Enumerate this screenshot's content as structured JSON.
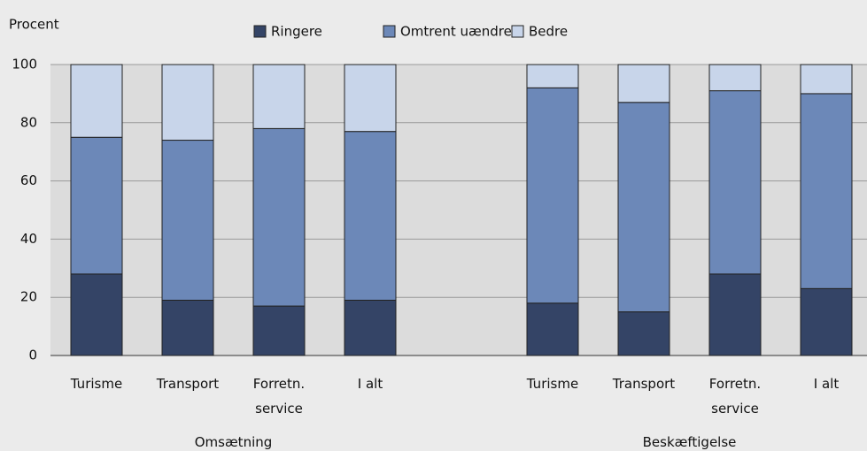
{
  "chart_data": {
    "type": "stacked_bar",
    "y_axis_label": "Procent",
    "categories": [
      "Turisme",
      "Transport",
      "Forretn. service",
      "I alt",
      null,
      "Turisme",
      "Transport",
      "Forretn. service",
      "I alt"
    ],
    "group_labels": [
      "Omsætning",
      "Beskæftigelse"
    ],
    "series": [
      {
        "name": "Ringere",
        "color": "#344466",
        "values": [
          28,
          19,
          17,
          19,
          null,
          18,
          15,
          28,
          23
        ]
      },
      {
        "name": "Omtrent uændret",
        "color": "#6c88b8",
        "values": [
          47,
          55,
          61,
          58,
          null,
          74,
          72,
          63,
          67
        ]
      },
      {
        "name": "Bedre",
        "color": "#c8d5ea",
        "values": [
          25,
          26,
          22,
          23,
          null,
          8,
          13,
          9,
          10
        ]
      }
    ],
    "ylim": [
      0,
      100
    ],
    "yticks": [
      0,
      20,
      40,
      60,
      80,
      100
    ],
    "grid": true
  }
}
